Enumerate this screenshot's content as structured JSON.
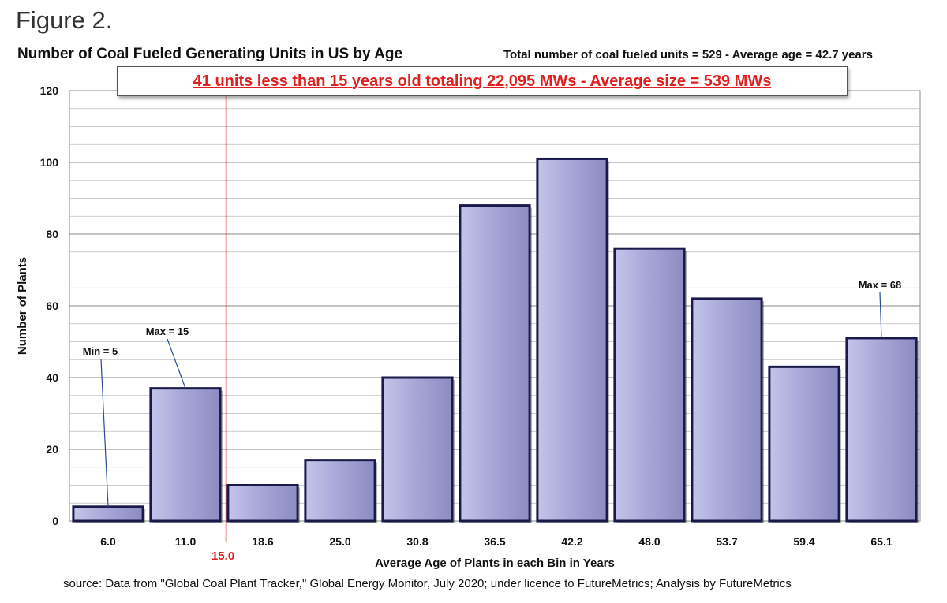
{
  "figure_label": "Figure 2.",
  "source_note": "source: Data from \"Global Coal Plant Tracker,\" Global Energy Monitor, July 2020;  under licence to FutureMetrics; Analysis by FutureMetrics",
  "colors": {
    "bar_fill": "#a5a5d6",
    "bar_border": "#1a1a4a",
    "reference_line": "#e02020",
    "grid": "#9a9a9a"
  },
  "chart_data": {
    "type": "bar",
    "title": "Number of Coal Fueled Generating Units in US by Age",
    "subtitle": "Total number of coal fueled units = 529  - Average age = 42.7  years",
    "banner": "41 units less than 15 years old totaling 22,095 MWs  -  Average size = 539 MWs",
    "xlabel": "Average Age of Plants in each Bin in Years",
    "ylabel": "Number of Plants",
    "categories": [
      "6.0",
      "11.0",
      "18.6",
      "25.0",
      "30.8",
      "36.5",
      "42.2",
      "48.0",
      "53.7",
      "59.4",
      "65.1"
    ],
    "values": [
      4,
      37,
      10,
      17,
      40,
      88,
      101,
      76,
      62,
      43,
      51
    ],
    "ylim": [
      0,
      120
    ],
    "yticks": [
      0,
      20,
      40,
      60,
      80,
      100,
      120
    ],
    "minor_grid_step": 5,
    "reference_line": {
      "label": "15.0",
      "x": 15.0
    },
    "annotations": [
      {
        "text": "Min = 5",
        "bar_index": 0
      },
      {
        "text": "Max = 15",
        "bar_index": 1
      },
      {
        "text": "Max = 68",
        "bar_index": 10
      }
    ],
    "legend": "none"
  }
}
